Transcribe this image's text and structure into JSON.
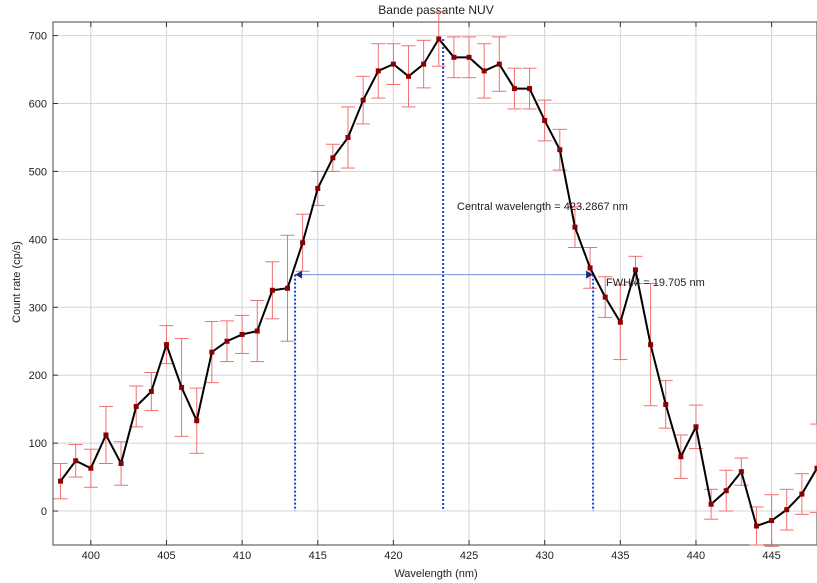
{
  "chart_data": {
    "type": "line",
    "title": "Bande passante NUV",
    "xlabel": "Wavelength (nm)",
    "ylabel": "Count rate (cp/s)",
    "xlim": [
      397.5,
      448
    ],
    "ylim": [
      -50,
      720
    ],
    "xticks": [
      400,
      405,
      410,
      415,
      420,
      425,
      430,
      435,
      440,
      445
    ],
    "yticks": [
      0,
      100,
      200,
      300,
      400,
      500,
      600,
      700
    ],
    "grid": true,
    "series": [
      {
        "x": [
          398,
          399,
          400,
          401,
          402,
          403,
          404,
          405,
          406,
          407,
          408,
          409,
          410,
          411,
          412,
          413,
          414,
          415,
          416,
          417,
          418,
          419,
          420,
          421,
          422,
          423,
          424,
          425,
          426,
          427,
          428,
          429,
          430,
          431,
          432,
          433,
          434,
          435,
          436,
          437,
          438,
          439,
          440,
          441,
          442,
          443,
          444,
          445,
          446,
          447,
          448
        ],
        "y": [
          44,
          74,
          63,
          112,
          70,
          154,
          176,
          245,
          182,
          133,
          234,
          250,
          260,
          265,
          325,
          328,
          395,
          475,
          520,
          550,
          605,
          648,
          658,
          640,
          658,
          695,
          668,
          668,
          648,
          658,
          622,
          622,
          575,
          532,
          418,
          358,
          315,
          278,
          355,
          245,
          157,
          80,
          124,
          10,
          30,
          58,
          -22,
          -14,
          2,
          25,
          63
        ],
        "err": [
          26,
          24,
          28,
          42,
          32,
          30,
          28,
          28,
          72,
          48,
          45,
          30,
          28,
          45,
          42,
          78,
          42,
          25,
          20,
          45,
          35,
          40,
          30,
          45,
          35,
          40,
          30,
          30,
          40,
          40,
          30,
          30,
          30,
          30,
          30,
          30,
          30,
          55,
          20,
          90,
          35,
          32,
          32,
          22,
          30,
          20,
          28,
          38,
          30,
          30,
          65
        ],
        "color": "#000000",
        "marker_color": "#8b0000",
        "errorbar_color": "#f07070"
      }
    ],
    "annotations": {
      "central": {
        "x": 423.2867,
        "label": "Central wavelength = 423.2867 nm",
        "color": "#1a3fd6"
      },
      "fwhm": {
        "x_left": 413.5,
        "x_right": 433.2,
        "y": 348,
        "label": "FWHM = 19.705 nm",
        "color": "#1a3fd6"
      }
    }
  }
}
